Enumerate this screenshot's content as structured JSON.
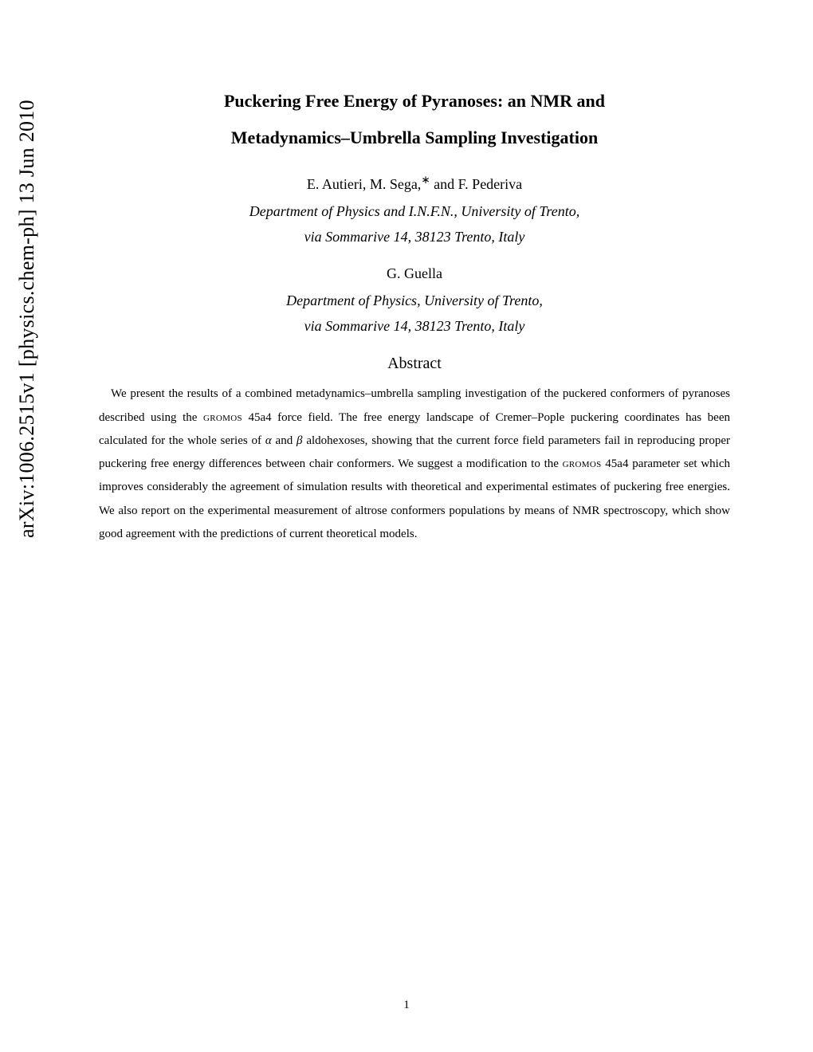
{
  "arxiv": {
    "id": "arXiv:1006.2515v1  [physics.chem-ph]  13 Jun 2010"
  },
  "title": {
    "line1": "Puckering Free Energy of Pyranoses: an NMR and",
    "line2": "Metadynamics–Umbrella Sampling Investigation"
  },
  "authors1": {
    "pre": "E. Autieri, M. Sega,",
    "corr": "∗",
    "post": " and F. Pederiva"
  },
  "affil1": {
    "line1": "Department of Physics and I.N.F.N., University of Trento,",
    "line2": "via Sommarive 14, 38123 Trento, Italy"
  },
  "authors2": "G. Guella",
  "affil2": {
    "line1": "Department of Physics, University of Trento,",
    "line2": "via Sommarive 14, 38123 Trento, Italy"
  },
  "abstract": {
    "heading": "Abstract",
    "body_pre": "We present the results of a combined metadynamics–umbrella sampling investigation of the puckered conformers of pyranoses described using the ",
    "gromos1": "gromos",
    "body_mid1": " 45a4 force field. The free energy landscape of Cremer–Pople puckering coordinates has been calculated for the whole series of ",
    "alpha": "α",
    "body_mid2": " and ",
    "beta": "β",
    "body_mid3": " aldohexoses, showing that the current force field parameters fail in reproducing proper puckering free energy differences between chair conformers. We suggest a modification to the ",
    "gromos2": "gromos",
    "body_post": " 45a4 parameter set which improves considerably the agreement of simulation results with theoretical and experimental estimates of puckering free energies. We also report on the experimental measurement of altrose conformers populations by means of NMR spectroscopy, which show good agreement with the predictions of current theoretical models."
  },
  "page_number": "1"
}
